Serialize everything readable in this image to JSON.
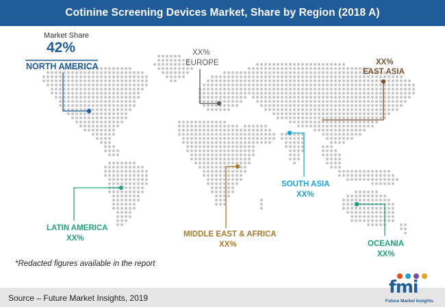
{
  "title": "Cotinine Screening Devices Market, Share by Region (2018 A)",
  "market_share_label": "Market Share",
  "regions": {
    "north_america": {
      "name": "NORTH AMERICA",
      "value": "42%"
    },
    "europe": {
      "name": "EUROPE",
      "value": "XX%"
    },
    "east_asia": {
      "name": "EAST ASIA",
      "value": "XX%"
    },
    "south_asia": {
      "name": "SOUTH ASIA",
      "value": "XX%"
    },
    "middle_east_africa": {
      "name": "MIDDLE EAST & AFRICA",
      "value": "XX%"
    },
    "latin_america": {
      "name": "LATIN AMERICA",
      "value": "XX%"
    },
    "oceania": {
      "name": "OCEANIA",
      "value": "XX%"
    }
  },
  "footnote": "*Redacted figures available in the report",
  "source": "Source – Future Market Insights, 2019",
  "logo": {
    "mark": "fmi",
    "tagline": "Future Market Insights"
  },
  "colors": {
    "title_bar": "#1f5c99",
    "north_america": "#1f5c99",
    "europe": "#595959",
    "east_asia": "#7a5230",
    "south_asia": "#1aa3d6",
    "middle_east_africa": "#a67c2e",
    "latin_america": "#22a37c",
    "oceania": "#1f9e7a",
    "map_dots": "#c6c6c6"
  }
}
